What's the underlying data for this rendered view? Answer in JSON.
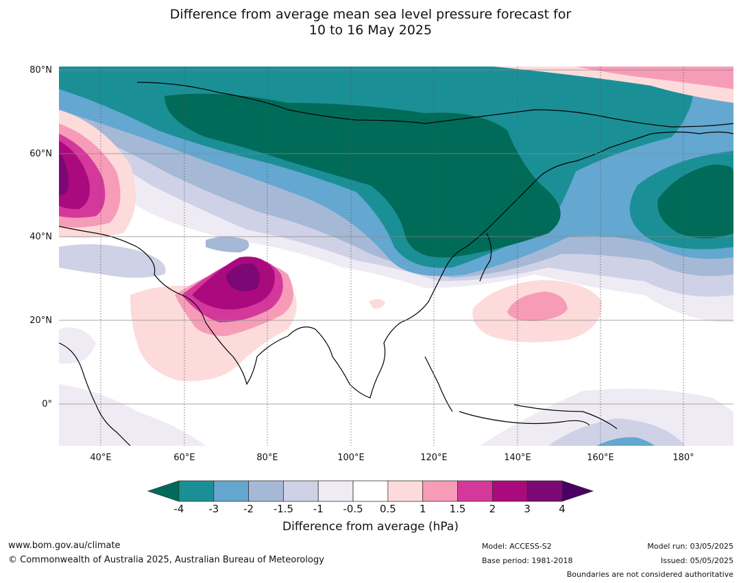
{
  "title_line1": "Difference from average mean sea level pressure forecast for",
  "title_line2": "10 to 16 May 2025",
  "lat_labels": [
    "80°N",
    "60°N",
    "40°N",
    "20°N",
    "0°"
  ],
  "lon_labels": [
    "40°E",
    "60°E",
    "80°E",
    "100°E",
    "120°E",
    "140°E",
    "160°E",
    "180°"
  ],
  "colorbar": {
    "title": "Difference from average (hPa)",
    "ticks": [
      "-4",
      "-3",
      "-2",
      "-1.5",
      "-1",
      "-0.5",
      "0.5",
      "1",
      "1.5",
      "2",
      "3",
      "4"
    ],
    "colors": [
      "#006b58",
      "#1b8f96",
      "#64a7d0",
      "#a5b9d6",
      "#cfd1e6",
      "#efebf4",
      "#ffffff",
      "#fddbdb",
      "#f69cb9",
      "#d5389b",
      "#aa0a7d",
      "#7b0874",
      "#4a0062"
    ]
  },
  "footer": {
    "website": "www.bom.gov.au/climate",
    "copyright": "© Commonwealth of Australia 2025, Australian Bureau of Meteorology",
    "model": "Model: ACCESS-S2",
    "base_period": "Base period: 1981-2018",
    "model_run": "Model run: 03/05/2025",
    "issued": "Issued: 05/05/2025",
    "disclaimer": "Boundaries are not considered authoritative"
  }
}
